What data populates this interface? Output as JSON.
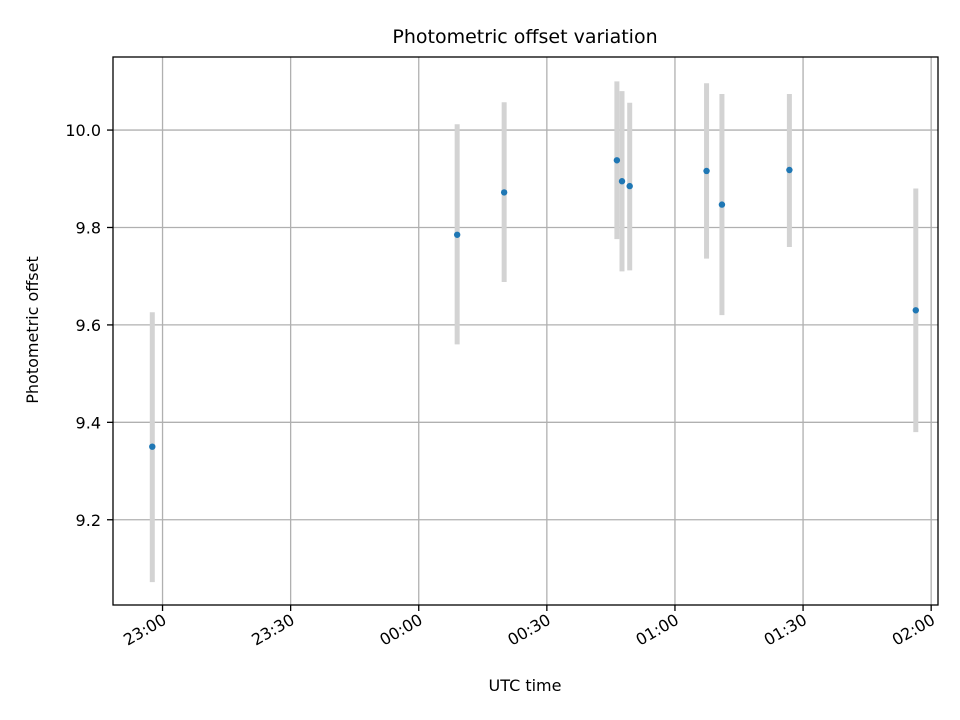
{
  "chart_data": {
    "type": "scatter",
    "title": "Photometric offset variation",
    "xlabel": "UTC time",
    "ylabel": "Photometric offset",
    "x_unit": "HH:MM",
    "xlim": [
      "22:48:24",
      "02:01:36"
    ],
    "ylim": [
      9.025,
      10.15
    ],
    "x_ticks": [
      "23:00",
      "23:30",
      "00:00",
      "00:30",
      "01:00",
      "01:30",
      "02:00"
    ],
    "y_ticks": [
      9.2,
      9.4,
      9.6,
      9.8,
      10.0
    ],
    "y_tick_labels": [
      "9.2",
      "9.4",
      "9.6",
      "9.8",
      "10.0"
    ],
    "grid": true,
    "point_color": "#1f77b4",
    "errorbar_color": "#d3d3d3",
    "points": [
      {
        "time": "22:57:36",
        "y": 9.35,
        "err_low": 9.072,
        "err_high": 9.626
      },
      {
        "time": "00:09:00",
        "y": 9.785,
        "err_low": 9.56,
        "err_high": 10.012
      },
      {
        "time": "00:20:00",
        "y": 9.872,
        "err_low": 9.688,
        "err_high": 10.057
      },
      {
        "time": "00:46:24",
        "y": 9.938,
        "err_low": 9.776,
        "err_high": 10.1
      },
      {
        "time": "00:47:36",
        "y": 9.895,
        "err_low": 9.71,
        "err_high": 10.08
      },
      {
        "time": "00:49:24",
        "y": 9.885,
        "err_low": 9.712,
        "err_high": 10.056
      },
      {
        "time": "01:07:24",
        "y": 9.916,
        "err_low": 9.736,
        "err_high": 10.096
      },
      {
        "time": "01:11:00",
        "y": 9.847,
        "err_low": 9.62,
        "err_high": 10.074
      },
      {
        "time": "01:26:48",
        "y": 9.918,
        "err_low": 9.76,
        "err_high": 10.074
      },
      {
        "time": "01:56:24",
        "y": 9.63,
        "err_low": 9.38,
        "err_high": 9.88
      }
    ]
  }
}
